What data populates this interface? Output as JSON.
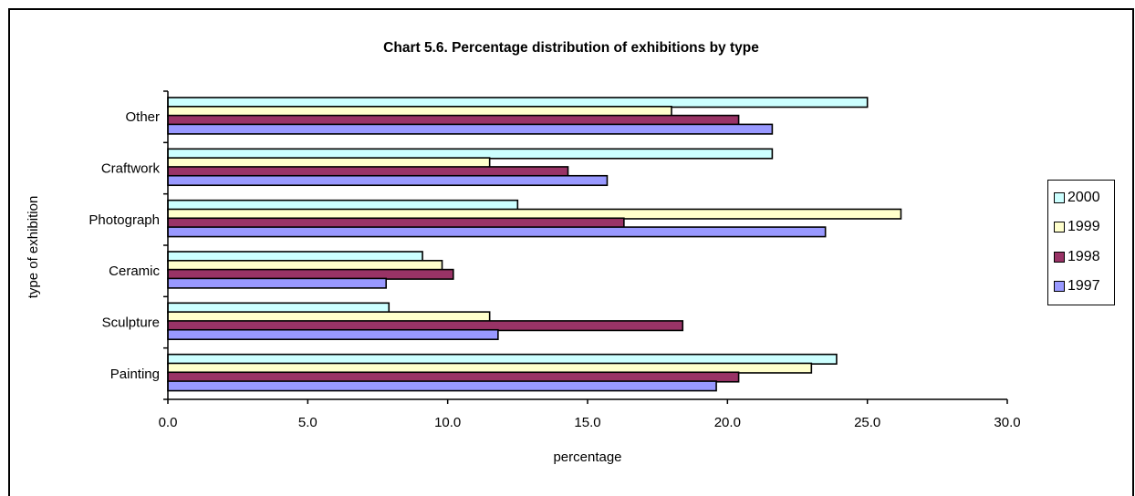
{
  "chart_data": {
    "type": "bar",
    "orientation": "horizontal",
    "title": "Chart 5.6.  Percentage distribution of exhibitions by type",
    "xlabel": "percentage",
    "ylabel": "type of exhibition",
    "xlim": [
      0,
      30
    ],
    "xticks": [
      "0.0",
      "5.0",
      "10.0",
      "15.0",
      "20.0",
      "25.0",
      "30.0"
    ],
    "categories": [
      "Other",
      "Craftwork",
      "Photograph",
      "Ceramic",
      "Sculpture",
      "Painting"
    ],
    "series": [
      {
        "name": "2000",
        "color": "#ccffff",
        "values": [
          25.0,
          21.6,
          12.5,
          9.1,
          7.9,
          23.9
        ]
      },
      {
        "name": "1999",
        "color": "#ffffcc",
        "values": [
          18.0,
          11.5,
          26.2,
          9.8,
          11.5,
          23.0
        ]
      },
      {
        "name": "1998",
        "color": "#993366",
        "values": [
          20.4,
          14.3,
          16.3,
          10.2,
          18.4,
          20.4
        ]
      },
      {
        "name": "1997",
        "color": "#9999ff",
        "values": [
          21.6,
          15.7,
          23.5,
          7.8,
          11.8,
          19.6
        ]
      }
    ],
    "legend": "right",
    "grid": false
  }
}
